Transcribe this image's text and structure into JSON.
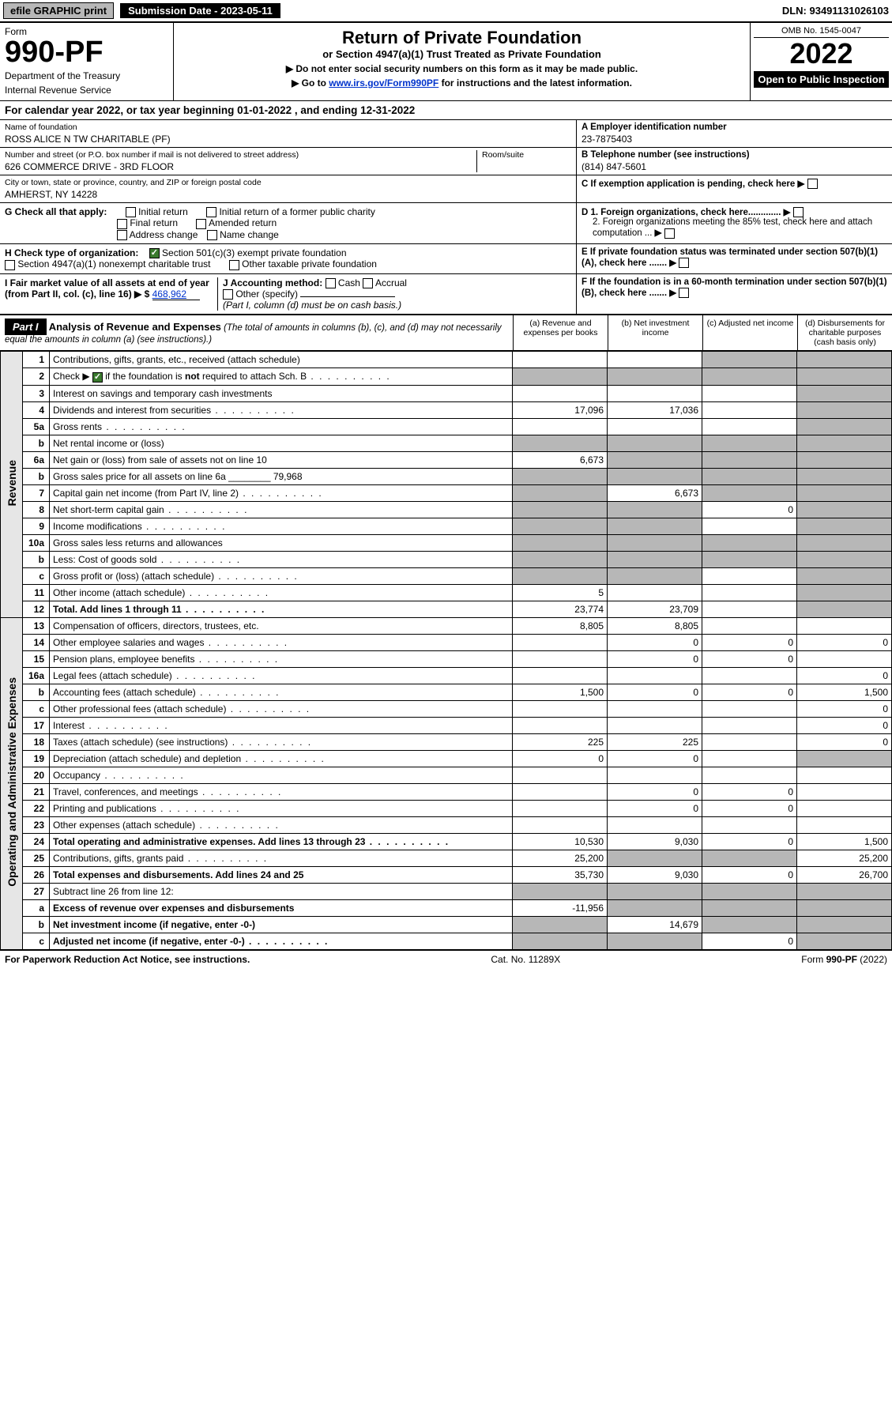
{
  "topbar": {
    "efile": "efile GRAPHIC print",
    "submission": "Submission Date - 2023-05-11",
    "dln": "DLN: 93491131026103"
  },
  "header": {
    "form_word": "Form",
    "form_no": "990-PF",
    "dept1": "Department of the Treasury",
    "dept2": "Internal Revenue Service",
    "title": "Return of Private Foundation",
    "subtitle": "or Section 4947(a)(1) Trust Treated as Private Foundation",
    "instr1": "▶ Do not enter social security numbers on this form as it may be made public.",
    "instr2_pre": "▶ Go to ",
    "instr2_link": "www.irs.gov/Form990PF",
    "instr2_post": " for instructions and the latest information.",
    "omb": "OMB No. 1545-0047",
    "year": "2022",
    "open": "Open to Public Inspection"
  },
  "calyear": "For calendar year 2022, or tax year beginning 01-01-2022                          , and ending 12-31-2022",
  "info": {
    "name_label": "Name of foundation",
    "name": "ROSS ALICE N TW CHARITABLE (PF)",
    "addr_label": "Number and street (or P.O. box number if mail is not delivered to street address)",
    "addr": "626 COMMERCE DRIVE - 3RD FLOOR",
    "room_label": "Room/suite",
    "city_label": "City or town, state or province, country, and ZIP or foreign postal code",
    "city": "AMHERST, NY  14228",
    "ein_label": "A Employer identification number",
    "ein": "23-7875403",
    "tel_label": "B Telephone number (see instructions)",
    "tel": "(814) 847-5601",
    "c_label": "C If exemption application is pending, check here",
    "d1": "D 1. Foreign organizations, check here.............",
    "d2": "2. Foreign organizations meeting the 85% test, check here and attach computation ...",
    "e_label": "E  If private foundation status was terminated under section 507(b)(1)(A), check here .......",
    "f_label": "F  If the foundation is in a 60-month termination under section 507(b)(1)(B), check here .......",
    "g_label": "G Check all that apply:",
    "g_opts": [
      "Initial return",
      "Initial return of a former public charity",
      "Final return",
      "Amended return",
      "Address change",
      "Name change"
    ],
    "h_label": "H Check type of organization:",
    "h1": "Section 501(c)(3) exempt private foundation",
    "h2": "Section 4947(a)(1) nonexempt charitable trust",
    "h3": "Other taxable private foundation",
    "i_label": "I Fair market value of all assets at end of year (from Part II, col. (c), line 16) ▶ $",
    "i_val": "468,962",
    "j_label": "J Accounting method:",
    "j_opts": [
      "Cash",
      "Accrual"
    ],
    "j_other": "Other (specify)",
    "j_note": "(Part I, column (d) must be on cash basis.)"
  },
  "part1": {
    "tag": "Part I",
    "title": "Analysis of Revenue and Expenses",
    "note": "(The total of amounts in columns (b), (c), and (d) may not necessarily equal the amounts in column (a) (see instructions).)",
    "col_a": "(a)   Revenue and expenses per books",
    "col_b": "(b)   Net investment income",
    "col_c": "(c)   Adjusted net income",
    "col_d": "(d)   Disbursements for charitable purposes (cash basis only)",
    "side_rev": "Revenue",
    "side_exp": "Operating and Administrative Expenses"
  },
  "rows": [
    {
      "n": "1",
      "d": "Contributions, gifts, grants, etc., received (attach schedule)",
      "a": "",
      "b": "",
      "c": "shade",
      "dd": "shade"
    },
    {
      "n": "2",
      "d": "Check ▶ ☑ if the foundation is not required to attach Sch. B",
      "dots": true,
      "a": "shade",
      "b": "shade",
      "c": "shade",
      "dd": "shade"
    },
    {
      "n": "3",
      "d": "Interest on savings and temporary cash investments",
      "a": "",
      "b": "",
      "c": "",
      "dd": "shade"
    },
    {
      "n": "4",
      "d": "Dividends and interest from securities",
      "dots": true,
      "a": "17,096",
      "b": "17,036",
      "c": "",
      "dd": "shade"
    },
    {
      "n": "5a",
      "d": "Gross rents",
      "dots": true,
      "a": "",
      "b": "",
      "c": "",
      "dd": "shade"
    },
    {
      "n": "b",
      "d": "Net rental income or (loss)",
      "a": "shade",
      "b": "shade",
      "c": "shade",
      "dd": "shade"
    },
    {
      "n": "6a",
      "d": "Net gain or (loss) from sale of assets not on line 10",
      "a": "6,673",
      "b": "shade",
      "c": "shade",
      "dd": "shade"
    },
    {
      "n": "b",
      "d": "Gross sales price for all assets on line 6a ________ 79,968",
      "a": "shade",
      "b": "shade",
      "c": "shade",
      "dd": "shade"
    },
    {
      "n": "7",
      "d": "Capital gain net income (from Part IV, line 2)",
      "dots": true,
      "a": "shade",
      "b": "6,673",
      "c": "shade",
      "dd": "shade"
    },
    {
      "n": "8",
      "d": "Net short-term capital gain",
      "dots": true,
      "a": "shade",
      "b": "shade",
      "c": "0",
      "dd": "shade"
    },
    {
      "n": "9",
      "d": "Income modifications",
      "dots": true,
      "a": "shade",
      "b": "shade",
      "c": "",
      "dd": "shade"
    },
    {
      "n": "10a",
      "d": "Gross sales less returns and allowances",
      "a": "shade",
      "b": "shade",
      "c": "shade",
      "dd": "shade"
    },
    {
      "n": "b",
      "d": "Less: Cost of goods sold",
      "dots": true,
      "a": "shade",
      "b": "shade",
      "c": "shade",
      "dd": "shade"
    },
    {
      "n": "c",
      "d": "Gross profit or (loss) (attach schedule)",
      "dots": true,
      "a": "shade",
      "b": "shade",
      "c": "",
      "dd": "shade"
    },
    {
      "n": "11",
      "d": "Other income (attach schedule)",
      "dots": true,
      "a": "5",
      "b": "",
      "c": "",
      "dd": "shade"
    },
    {
      "n": "12",
      "d": "Total. Add lines 1 through 11",
      "bold": true,
      "dots": true,
      "a": "23,774",
      "b": "23,709",
      "c": "",
      "dd": "shade"
    },
    {
      "n": "13",
      "d": "Compensation of officers, directors, trustees, etc.",
      "a": "8,805",
      "b": "8,805",
      "c": "",
      "dd": ""
    },
    {
      "n": "14",
      "d": "Other employee salaries and wages",
      "dots": true,
      "a": "",
      "b": "0",
      "c": "0",
      "dd": "0"
    },
    {
      "n": "15",
      "d": "Pension plans, employee benefits",
      "dots": true,
      "a": "",
      "b": "0",
      "c": "0",
      "dd": ""
    },
    {
      "n": "16a",
      "d": "Legal fees (attach schedule)",
      "dots": true,
      "a": "",
      "b": "",
      "c": "",
      "dd": "0"
    },
    {
      "n": "b",
      "d": "Accounting fees (attach schedule)",
      "dots": true,
      "a": "1,500",
      "b": "0",
      "c": "0",
      "dd": "1,500"
    },
    {
      "n": "c",
      "d": "Other professional fees (attach schedule)",
      "dots": true,
      "a": "",
      "b": "",
      "c": "",
      "dd": "0"
    },
    {
      "n": "17",
      "d": "Interest",
      "dots": true,
      "a": "",
      "b": "",
      "c": "",
      "dd": "0"
    },
    {
      "n": "18",
      "d": "Taxes (attach schedule) (see instructions)",
      "dots": true,
      "a": "225",
      "b": "225",
      "c": "",
      "dd": "0"
    },
    {
      "n": "19",
      "d": "Depreciation (attach schedule) and depletion",
      "dots": true,
      "a": "0",
      "b": "0",
      "c": "",
      "dd": "shade"
    },
    {
      "n": "20",
      "d": "Occupancy",
      "dots": true,
      "a": "",
      "b": "",
      "c": "",
      "dd": ""
    },
    {
      "n": "21",
      "d": "Travel, conferences, and meetings",
      "dots": true,
      "a": "",
      "b": "0",
      "c": "0",
      "dd": ""
    },
    {
      "n": "22",
      "d": "Printing and publications",
      "dots": true,
      "a": "",
      "b": "0",
      "c": "0",
      "dd": ""
    },
    {
      "n": "23",
      "d": "Other expenses (attach schedule)",
      "dots": true,
      "a": "",
      "b": "",
      "c": "",
      "dd": ""
    },
    {
      "n": "24",
      "d": "Total operating and administrative expenses. Add lines 13 through 23",
      "bold": true,
      "dots": true,
      "a": "10,530",
      "b": "9,030",
      "c": "0",
      "dd": "1,500"
    },
    {
      "n": "25",
      "d": "Contributions, gifts, grants paid",
      "dots": true,
      "a": "25,200",
      "b": "shade",
      "c": "shade",
      "dd": "25,200"
    },
    {
      "n": "26",
      "d": "Total expenses and disbursements. Add lines 24 and 25",
      "bold": true,
      "a": "35,730",
      "b": "9,030",
      "c": "0",
      "dd": "26,700"
    },
    {
      "n": "27",
      "d": "Subtract line 26 from line 12:",
      "a": "shade",
      "b": "shade",
      "c": "shade",
      "dd": "shade"
    },
    {
      "n": "a",
      "d": "Excess of revenue over expenses and disbursements",
      "bold": true,
      "a": "-11,956",
      "b": "shade",
      "c": "shade",
      "dd": "shade"
    },
    {
      "n": "b",
      "d": "Net investment income (if negative, enter -0-)",
      "bold": true,
      "a": "shade",
      "b": "14,679",
      "c": "shade",
      "dd": "shade"
    },
    {
      "n": "c",
      "d": "Adjusted net income (if negative, enter -0-)",
      "bold": true,
      "dots": true,
      "a": "shade",
      "b": "shade",
      "c": "0",
      "dd": "shade"
    }
  ],
  "footer": {
    "left": "For Paperwork Reduction Act Notice, see instructions.",
    "mid": "Cat. No. 11289X",
    "right": "Form 990-PF (2022)"
  },
  "colors": {
    "shade": "#b7b7b7",
    "black": "#000000",
    "link": "#0033cc",
    "check_green": "#3a7a2e"
  }
}
